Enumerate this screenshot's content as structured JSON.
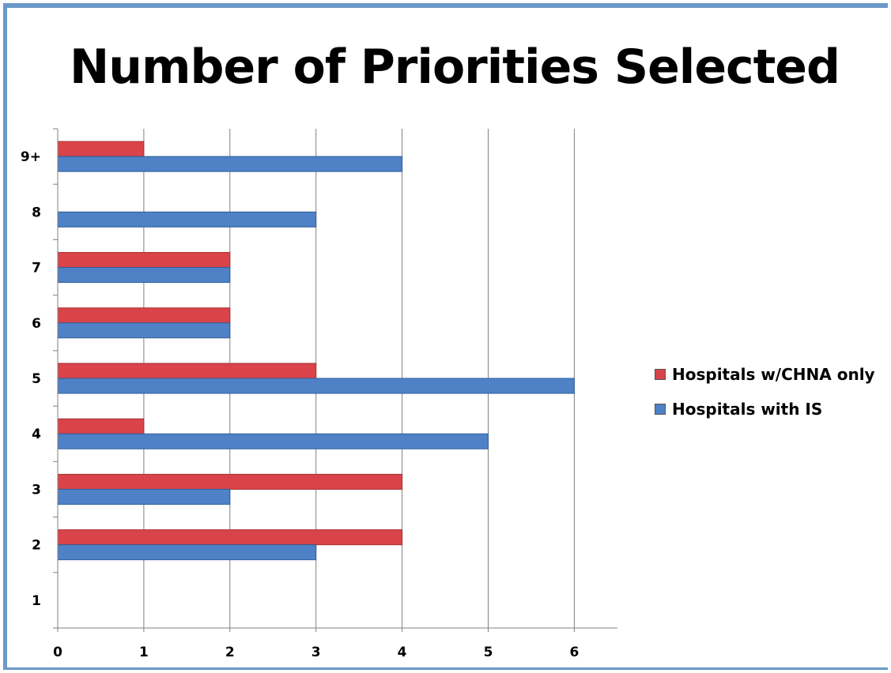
{
  "page": {
    "title": "Number of Priorities Selected"
  },
  "colors": {
    "frame": "#6b98c8",
    "red_series": "#d9434a",
    "red_series_edge": "#a7322f",
    "blue_series": "#4f81c6",
    "blue_series_edge": "#2f5e9a",
    "gridline": "#808080"
  },
  "chart_data": {
    "type": "bar",
    "orientation": "horizontal",
    "title": "Number of Priorities Selected",
    "categories": [
      "1",
      "2",
      "3",
      "4",
      "5",
      "6",
      "7",
      "8",
      "9+"
    ],
    "series": [
      {
        "name": "Hospitals w/CHNA only",
        "color": "#d9434a",
        "values": [
          0,
          4,
          4,
          1,
          3,
          2,
          2,
          0,
          1
        ]
      },
      {
        "name": "Hospitals with IS",
        "color": "#4f81c6",
        "values": [
          0,
          3,
          2,
          5,
          6,
          2,
          2,
          3,
          4
        ]
      }
    ],
    "x_ticks": [
      "0",
      "1",
      "2",
      "3",
      "4",
      "5",
      "6"
    ],
    "xlim": [
      0,
      6.5
    ],
    "grid": "vertical",
    "legend": "right"
  }
}
